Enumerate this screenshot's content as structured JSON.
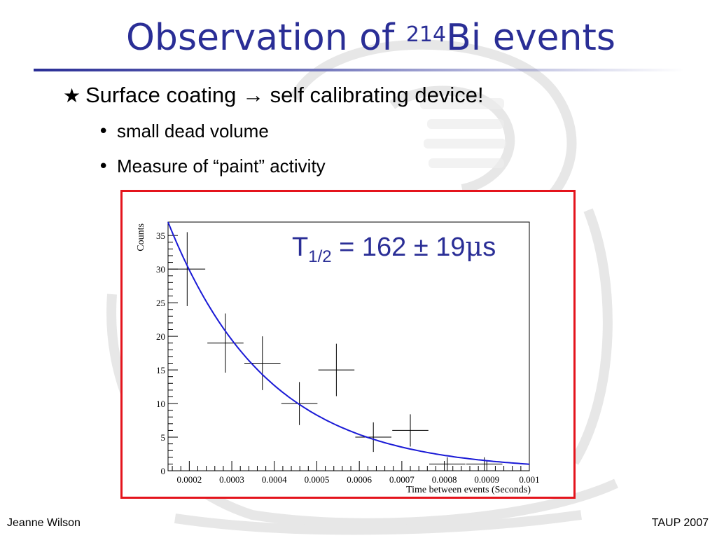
{
  "slide": {
    "title_main": "Observation of ",
    "title_sup": "214",
    "title_end": "Bi events",
    "bullet_main_symbol": "★",
    "bullet_main": "Surface coating → self calibrating device!",
    "sub_bullet_symbol": "•",
    "sub_bullets": [
      "small dead volume",
      "Measure of “paint” activity"
    ],
    "footer_left": "Jeanne Wilson",
    "footer_right": "TAUP 2007",
    "colors": {
      "title": "#2a2e96",
      "frame": "#e4141c",
      "fit_curve": "#1a1ad6",
      "annotation": "#2a2e96"
    }
  },
  "chart_data": {
    "type": "scatter",
    "xlabel": "Time between events (Seconds)",
    "ylabel": "Counts",
    "xlim": [
      0.00015,
      0.001
    ],
    "ylim": [
      0,
      37
    ],
    "x_tick_labels": [
      "0.0002",
      "0.0003",
      "0.0004",
      "0.0005",
      "0.0006",
      "0.0007",
      "0.0008",
      "0.0009",
      "0.001"
    ],
    "x_tick_values": [
      0.0002,
      0.0003,
      0.0004,
      0.0005,
      0.0006,
      0.0007,
      0.0008,
      0.0009,
      0.001
    ],
    "y_tick_labels": [
      "0",
      "5",
      "10",
      "15",
      "20",
      "25",
      "30",
      "35"
    ],
    "y_tick_values": [
      0,
      5,
      10,
      15,
      20,
      25,
      30,
      35
    ],
    "series": [
      {
        "marker": "error-cross",
        "color": "#000000",
        "points": [
          {
            "x": 0.000195,
            "y": 30,
            "xerr": 4.25e-05,
            "yerr": 5.5
          },
          {
            "x": 0.000285,
            "y": 19,
            "xerr": 4.25e-05,
            "yerr": 4.4
          },
          {
            "x": 0.000372,
            "y": 16,
            "xerr": 4.25e-05,
            "yerr": 4.0
          },
          {
            "x": 0.000459,
            "y": 10,
            "xerr": 4.25e-05,
            "yerr": 3.2
          },
          {
            "x": 0.000546,
            "y": 15,
            "xerr": 4.25e-05,
            "yerr": 3.9
          },
          {
            "x": 0.000633,
            "y": 5,
            "xerr": 4.25e-05,
            "yerr": 2.2
          },
          {
            "x": 0.00072,
            "y": 6,
            "xerr": 4.25e-05,
            "yerr": 2.4
          },
          {
            "x": 0.000807,
            "y": 1,
            "xerr": 4.25e-05,
            "yerr": 1.0
          },
          {
            "x": 0.000894,
            "y": 1,
            "xerr": 4.25e-05,
            "yerr": 1.0
          }
        ]
      }
    ],
    "fit": {
      "type": "exponential-decay",
      "color": "#1a1ad6",
      "amplitude_at_xmin": 37,
      "half_life": 0.000162,
      "annotation_prefix": "T",
      "annotation_sub": "1/2",
      "annotation_value": " = 162 ± 19",
      "annotation_unit_mu": "μ",
      "annotation_unit_s": "s"
    }
  }
}
